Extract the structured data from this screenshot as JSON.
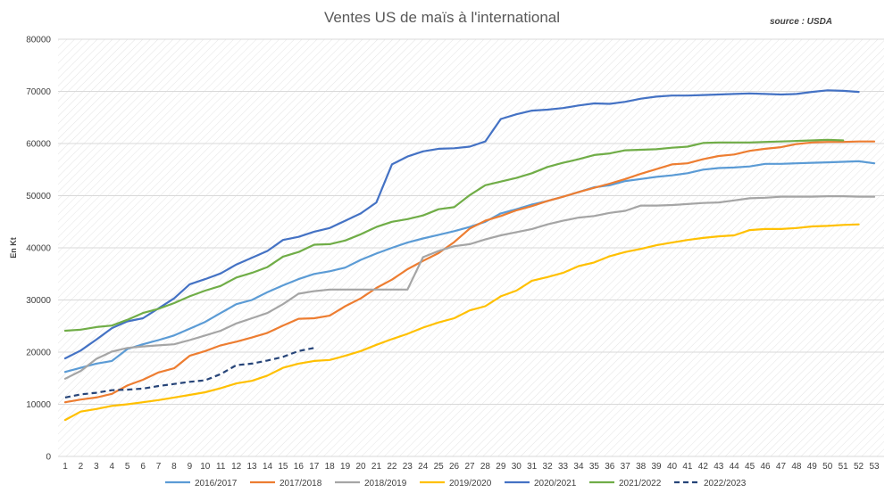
{
  "chart_data": {
    "type": "line",
    "title": "Ventes US de maïs à l'international",
    "source": "source : USDA",
    "ylabel": "En Kt",
    "xlabel": "",
    "ylim": [
      0,
      80000
    ],
    "yticks": [
      "0",
      "10000",
      "20000",
      "30000",
      "40000",
      "50000",
      "60000",
      "70000",
      "80000"
    ],
    "x": [
      1,
      2,
      3,
      4,
      5,
      6,
      7,
      8,
      9,
      10,
      11,
      12,
      13,
      14,
      15,
      16,
      17,
      18,
      19,
      20,
      21,
      22,
      23,
      24,
      25,
      26,
      27,
      28,
      29,
      30,
      31,
      32,
      33,
      34,
      35,
      36,
      37,
      38,
      39,
      40,
      41,
      42,
      43,
      44,
      45,
      46,
      47,
      48,
      49,
      50,
      51,
      52,
      53
    ],
    "grid": true,
    "grid_style": "diagonal-hatch",
    "legend_position": "bottom",
    "series": [
      {
        "name": "2016/2017",
        "color": "#5B9BD5",
        "dashed": false,
        "values": [
          16200,
          17000,
          17800,
          18300,
          20600,
          21500,
          22300,
          23200,
          24500,
          25800,
          27500,
          29200,
          30000,
          31500,
          32800,
          34000,
          35000,
          35500,
          36200,
          37700,
          38900,
          40000,
          41000,
          41800,
          42500,
          43200,
          44000,
          45000,
          46600,
          47400,
          48300,
          49000,
          49800,
          50700,
          51600,
          52000,
          52800,
          53200,
          53600,
          53900,
          54300,
          55000,
          55300,
          55400,
          55600,
          56100,
          56100,
          56200,
          56300,
          56400,
          56500,
          56600,
          56200
        ]
      },
      {
        "name": "2017/2018",
        "color": "#ED7D31",
        "dashed": false,
        "values": [
          10400,
          10900,
          11300,
          12000,
          13600,
          14700,
          16100,
          16900,
          19300,
          20200,
          21300,
          22000,
          22800,
          23700,
          25100,
          26400,
          26500,
          27000,
          28800,
          30300,
          32300,
          33900,
          35900,
          37500,
          39000,
          41100,
          43700,
          45200,
          46100,
          47200,
          48000,
          49000,
          49800,
          50700,
          51500,
          52300,
          53200,
          54200,
          55100,
          56000,
          56200,
          57000,
          57600,
          57900,
          58600,
          59000,
          59300,
          59900,
          60200,
          60300,
          60300,
          60400,
          60400
        ]
      },
      {
        "name": "2018/2019",
        "color": "#A5A5A5",
        "dashed": false,
        "values": [
          14900,
          16400,
          18700,
          20100,
          20800,
          21100,
          21300,
          21500,
          22300,
          23200,
          24100,
          25500,
          26500,
          27500,
          29200,
          31200,
          31700,
          32000,
          32000,
          32000,
          32000,
          32000,
          32000,
          38200,
          39400,
          40300,
          40700,
          41600,
          42400,
          43000,
          43600,
          44500,
          45200,
          45800,
          46100,
          46700,
          47100,
          48100,
          48100,
          48200,
          48400,
          48600,
          48700,
          49100,
          49500,
          49600,
          49800,
          49800,
          49800,
          49900,
          49900,
          49800,
          49800
        ]
      },
      {
        "name": "2019/2020",
        "color": "#FFC000",
        "dashed": false,
        "values": [
          7000,
          8600,
          9100,
          9700,
          10000,
          10400,
          10800,
          11300,
          11800,
          12300,
          13100,
          14000,
          14500,
          15500,
          17000,
          17800,
          18300,
          18500,
          19300,
          20200,
          21400,
          22500,
          23500,
          24700,
          25700,
          26500,
          28000,
          28800,
          30700,
          31800,
          33700,
          34400,
          35200,
          36500,
          37200,
          38400,
          39200,
          39800,
          40500,
          41000,
          41500,
          41900,
          42200,
          42400,
          43400,
          43600,
          43600,
          43800,
          44100,
          44200,
          44400,
          44500,
          null
        ]
      },
      {
        "name": "2020/2021",
        "color": "#4472C4",
        "dashed": false,
        "values": [
          18800,
          20300,
          22400,
          24600,
          25900,
          26500,
          28400,
          30300,
          33000,
          34000,
          35100,
          36800,
          38100,
          39400,
          41500,
          42100,
          43100,
          43800,
          45200,
          46600,
          48700,
          56000,
          57500,
          58500,
          59000,
          59100,
          59400,
          60400,
          64700,
          65600,
          66300,
          66500,
          66800,
          67300,
          67700,
          67600,
          68000,
          68600,
          69000,
          69200,
          69200,
          69300,
          69400,
          69500,
          69600,
          69500,
          69400,
          69500,
          69900,
          70200,
          70100,
          69900,
          null
        ]
      },
      {
        "name": "2021/2022",
        "color": "#70AD47",
        "dashed": false,
        "values": [
          24100,
          24300,
          24800,
          25100,
          26200,
          27500,
          28300,
          29400,
          30700,
          31800,
          32700,
          34300,
          35200,
          36300,
          38300,
          39200,
          40600,
          40700,
          41400,
          42600,
          44000,
          45000,
          45500,
          46200,
          47400,
          47800,
          50100,
          52000,
          52700,
          53400,
          54300,
          55500,
          56300,
          57000,
          57800,
          58100,
          58700,
          58800,
          58900,
          59200,
          59400,
          60100,
          60200,
          60200,
          60200,
          60300,
          60400,
          60500,
          60600,
          60700,
          60600,
          null,
          null
        ]
      },
      {
        "name": "2022/2023",
        "color": "#264478",
        "dashed": true,
        "values": [
          11300,
          11900,
          12200,
          12700,
          12800,
          13000,
          13500,
          13900,
          14300,
          14600,
          15800,
          17500,
          17800,
          18400,
          19100,
          20200,
          20800,
          null,
          null,
          null,
          null,
          null,
          null,
          null,
          null,
          null,
          null,
          null,
          null,
          null,
          null,
          null,
          null,
          null,
          null,
          null,
          null,
          null,
          null,
          null,
          null,
          null,
          null,
          null,
          null,
          null,
          null,
          null,
          null,
          null,
          null,
          null,
          null
        ]
      }
    ]
  }
}
